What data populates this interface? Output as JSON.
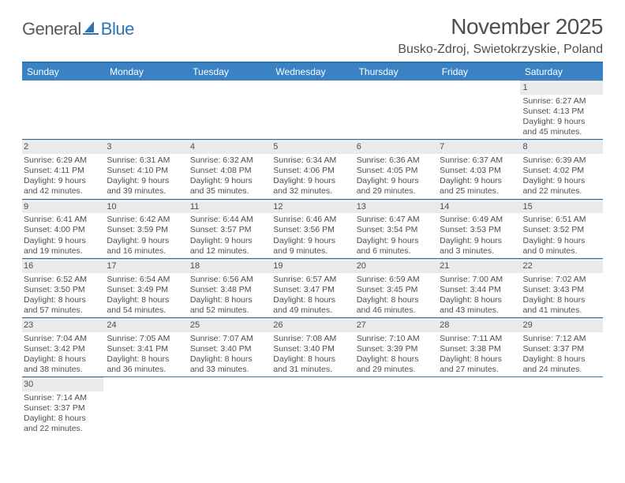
{
  "logo": {
    "text1": "General",
    "text2": "Blue"
  },
  "title": "November 2025",
  "location": "Busko-Zdroj, Swietokrzyskie, Poland",
  "colors": {
    "header_bar": "#3a82c4",
    "header_border": "#2e74b5",
    "row_divider": "#2e74b5",
    "daynum_bg": "#e9eaeb",
    "text": "#4a4f55",
    "cell_top": "#c9c9c9"
  },
  "dow": [
    "Sunday",
    "Monday",
    "Tuesday",
    "Wednesday",
    "Thursday",
    "Friday",
    "Saturday"
  ],
  "weeks": [
    [
      null,
      null,
      null,
      null,
      null,
      null,
      {
        "n": "1",
        "sr": "6:27 AM",
        "ss": "4:13 PM",
        "dl": "9 hours and 45 minutes."
      }
    ],
    [
      {
        "n": "2",
        "sr": "6:29 AM",
        "ss": "4:11 PM",
        "dl": "9 hours and 42 minutes."
      },
      {
        "n": "3",
        "sr": "6:31 AM",
        "ss": "4:10 PM",
        "dl": "9 hours and 39 minutes."
      },
      {
        "n": "4",
        "sr": "6:32 AM",
        "ss": "4:08 PM",
        "dl": "9 hours and 35 minutes."
      },
      {
        "n": "5",
        "sr": "6:34 AM",
        "ss": "4:06 PM",
        "dl": "9 hours and 32 minutes."
      },
      {
        "n": "6",
        "sr": "6:36 AM",
        "ss": "4:05 PM",
        "dl": "9 hours and 29 minutes."
      },
      {
        "n": "7",
        "sr": "6:37 AM",
        "ss": "4:03 PM",
        "dl": "9 hours and 25 minutes."
      },
      {
        "n": "8",
        "sr": "6:39 AM",
        "ss": "4:02 PM",
        "dl": "9 hours and 22 minutes."
      }
    ],
    [
      {
        "n": "9",
        "sr": "6:41 AM",
        "ss": "4:00 PM",
        "dl": "9 hours and 19 minutes."
      },
      {
        "n": "10",
        "sr": "6:42 AM",
        "ss": "3:59 PM",
        "dl": "9 hours and 16 minutes."
      },
      {
        "n": "11",
        "sr": "6:44 AM",
        "ss": "3:57 PM",
        "dl": "9 hours and 12 minutes."
      },
      {
        "n": "12",
        "sr": "6:46 AM",
        "ss": "3:56 PM",
        "dl": "9 hours and 9 minutes."
      },
      {
        "n": "13",
        "sr": "6:47 AM",
        "ss": "3:54 PM",
        "dl": "9 hours and 6 minutes."
      },
      {
        "n": "14",
        "sr": "6:49 AM",
        "ss": "3:53 PM",
        "dl": "9 hours and 3 minutes."
      },
      {
        "n": "15",
        "sr": "6:51 AM",
        "ss": "3:52 PM",
        "dl": "9 hours and 0 minutes."
      }
    ],
    [
      {
        "n": "16",
        "sr": "6:52 AM",
        "ss": "3:50 PM",
        "dl": "8 hours and 57 minutes."
      },
      {
        "n": "17",
        "sr": "6:54 AM",
        "ss": "3:49 PM",
        "dl": "8 hours and 54 minutes."
      },
      {
        "n": "18",
        "sr": "6:56 AM",
        "ss": "3:48 PM",
        "dl": "8 hours and 52 minutes."
      },
      {
        "n": "19",
        "sr": "6:57 AM",
        "ss": "3:47 PM",
        "dl": "8 hours and 49 minutes."
      },
      {
        "n": "20",
        "sr": "6:59 AM",
        "ss": "3:45 PM",
        "dl": "8 hours and 46 minutes."
      },
      {
        "n": "21",
        "sr": "7:00 AM",
        "ss": "3:44 PM",
        "dl": "8 hours and 43 minutes."
      },
      {
        "n": "22",
        "sr": "7:02 AM",
        "ss": "3:43 PM",
        "dl": "8 hours and 41 minutes."
      }
    ],
    [
      {
        "n": "23",
        "sr": "7:04 AM",
        "ss": "3:42 PM",
        "dl": "8 hours and 38 minutes."
      },
      {
        "n": "24",
        "sr": "7:05 AM",
        "ss": "3:41 PM",
        "dl": "8 hours and 36 minutes."
      },
      {
        "n": "25",
        "sr": "7:07 AM",
        "ss": "3:40 PM",
        "dl": "8 hours and 33 minutes."
      },
      {
        "n": "26",
        "sr": "7:08 AM",
        "ss": "3:40 PM",
        "dl": "8 hours and 31 minutes."
      },
      {
        "n": "27",
        "sr": "7:10 AM",
        "ss": "3:39 PM",
        "dl": "8 hours and 29 minutes."
      },
      {
        "n": "28",
        "sr": "7:11 AM",
        "ss": "3:38 PM",
        "dl": "8 hours and 27 minutes."
      },
      {
        "n": "29",
        "sr": "7:12 AM",
        "ss": "3:37 PM",
        "dl": "8 hours and 24 minutes."
      }
    ],
    [
      {
        "n": "30",
        "sr": "7:14 AM",
        "ss": "3:37 PM",
        "dl": "8 hours and 22 minutes."
      },
      null,
      null,
      null,
      null,
      null,
      null
    ]
  ],
  "labels": {
    "sunrise": "Sunrise:",
    "sunset": "Sunset:",
    "daylight": "Daylight:"
  }
}
